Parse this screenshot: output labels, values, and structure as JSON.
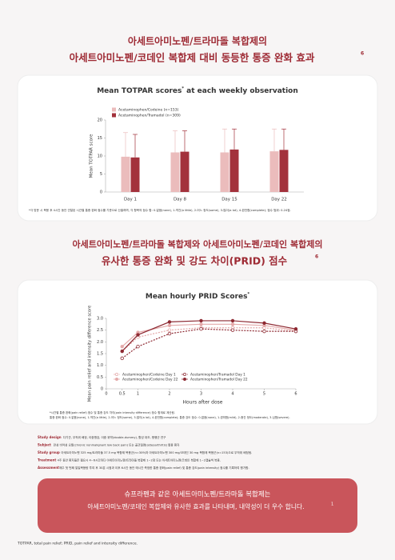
{
  "header1": {
    "line1": "아세트아미노펜/트라마돌 복합제의",
    "line2": "아세트아미노펜/코데인 복합제 대비 동등한 통증 완화 효과",
    "sup": "6"
  },
  "header2": {
    "line1": "아세트아미노펜/트라마돌 복합제와 아세트아미노펜/코데인 복합제의",
    "line2": "유사한 통증 완화 및 강도 차이(PRID) 점수",
    "sup": "6"
  },
  "chart_data": [
    {
      "type": "bar",
      "title": "Mean TOTPAR scores",
      "title_sup": "*",
      "title_rest": " at each weekly observation",
      "y_label": "Mean TOTPAR score",
      "categories": [
        "Day 1",
        "Day 8",
        "Day 15",
        "Day 22"
      ],
      "series": [
        {
          "name": "Acetaminophen/Codeine (n=153)",
          "color": "#ebbcbc",
          "values": [
            9.8,
            11,
            11,
            11.3
          ],
          "errors": [
            6.7,
            6,
            6.5,
            6.2
          ]
        },
        {
          "name": "Acetaminophen/Tramadol (n=309)",
          "color": "#a3323c",
          "values": [
            9.6,
            11.2,
            11.8,
            11.7
          ],
          "errors": [
            6.4,
            5.8,
            5.7,
            5.8
          ]
        }
      ],
      "ylim": [
        0,
        20
      ],
      "yticks": [
        0,
        5,
        10,
        15,
        20
      ],
      "grid": false,
      "legend": "top-left",
      "footnote": "*각 방문 시 복용 후 4시간 동안 관찰된 시간별 통증 완화 점수를 기준으로 산출하며, 각 항목의 점수 합: 0-없음(none), 1-약간(a little), 2-어느 정도(some), 3-많이(a lot), 4-완전함(complete); 점수 범위: 0-24점."
    },
    {
      "type": "line",
      "title": "Mean hourly PRID Scores",
      "title_sup": "*",
      "y_label": "Mean pain relief and intensity difference score",
      "x_label": "Hours after dose",
      "x": [
        0.5,
        1,
        2,
        3,
        4,
        5,
        6
      ],
      "series": [
        {
          "name": "Acetaminophen/Codeine Day 1",
          "color": "#e4a9a9",
          "marker": "open",
          "values": [
            1.6,
            2.2,
            2.5,
            2.6,
            2.6,
            2.6,
            2.45
          ]
        },
        {
          "name": "Acetaminophen/Codeine Day 22",
          "color": "#e4a9a9",
          "marker": "filled",
          "values": [
            1.8,
            2.4,
            2.7,
            2.75,
            2.75,
            2.7,
            2.5
          ]
        },
        {
          "name": "Acetaminophen/Tramadol Day 1",
          "color": "#8e2a33",
          "marker": "open",
          "values": [
            1.3,
            1.8,
            2.35,
            2.55,
            2.5,
            2.45,
            2.45
          ]
        },
        {
          "name": "Acetaminophen/Tramadol Day 22",
          "color": "#8e2a33",
          "marker": "filled",
          "values": [
            1.6,
            2.3,
            2.85,
            2.9,
            2.9,
            2.8,
            2.55
          ]
        }
      ],
      "xlim": [
        0,
        6
      ],
      "xticks": [
        0,
        0.5,
        1,
        2,
        3,
        4,
        5,
        6
      ],
      "ylim": [
        0,
        3
      ],
      "yticks": [
        0,
        0.5,
        {
          "value": 1,
          "label": "1.0"
        },
        1.5,
        {
          "value": 2,
          "label": "2.0"
        },
        2.5,
        {
          "value": 3,
          "label": "3.0"
        }
      ],
      "legend": "bottom-left",
      "footnote": [
        "*시간별 통증 완화(pain relief) 점수 및 통증 강도 차이(pain intensity difference) 점수 합계로 계산됨.",
        "통증 완화 점수: 0-없음(none), 1-약간(a little), 2-어느 정도(some), 3-많이(a lot), 4-완전함(complete); 통증 강도 점수: 0-없음(none), 1-경미함(mild), 2-중간 정도(moderate), 3-심함(severe)."
      ]
    }
  ],
  "study": [
    {
      "label": "Study design",
      "text": "다기관, 무작위 배정, 이중맹검, 이중 위약(double-dummy), 활성 대조, 평행군 연구"
    },
    {
      "label": "Subject",
      "text": "만성 비악성 요통(chronic nonmalignant low back pain) 또는 골관절염(osteoarthritis) 통증 환자"
    },
    {
      "label": "Study group",
      "text": "아세트아미노펜 325 mg/트라마돌 37.5 mg 복합제 복용군(n=309)과 아세트아미노펜 300 mg/코데인 30 mg 복합제 복용군(n=153)으로 무작위 배정됨."
    },
    {
      "label": "Treatment",
      "text": "4주 동안 환자들은 필요시 4~6시간마다 아세트아미노펜/트라마돌 복합제 1~2정 또는 아세트아미노펜/코데인 복합제 1~2캡슐씩 복용."
    },
    {
      "label": "Assessment",
      "text": "매주 첫 번째 일일복용량 투여 후 30분 시점과 이후 6시간 동안 매시간 측정한 통증 완화(pain relief) 및 통증 강도(pain intensity) 점수를 기록하여 평가함."
    }
  ],
  "conclusion": {
    "line1": "슈프라펜과 같은 아세트아미노펜/트라마돌 복합제는",
    "line2": "아세트아미노펜/코데인 복합제와 유사한 효과를 나타내며, 내약성이 더 우수 합니다.",
    "sup": "1"
  },
  "footer": "TOTPAR, total pain relief; PRID, pain relief and intensity difference."
}
